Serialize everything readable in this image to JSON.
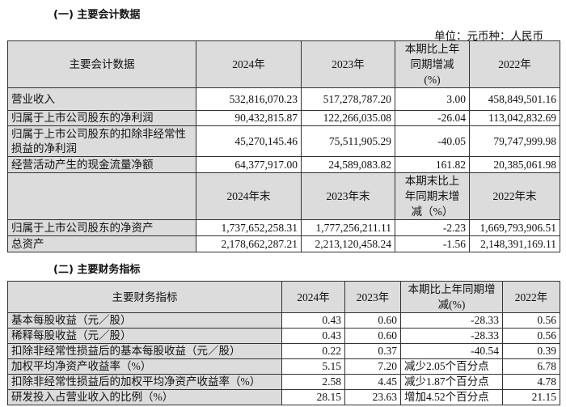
{
  "section1": {
    "title": "(一) 主要会计数据",
    "unit": "单位：元币种：人民币",
    "header1": [
      "主要会计数据",
      "2024年",
      "2023年",
      "本期比上年同期增减(%)",
      "2022年"
    ],
    "rows1": [
      {
        "label": "营业收入",
        "v2024": "532,816,070.23",
        "v2023": "517,278,787.20",
        "change": "3.00",
        "v2022": "458,849,501.16"
      },
      {
        "label": "归属于上市公司股东的净利润",
        "v2024": "90,432,815.87",
        "v2023": "122,266,035.08",
        "change": "-26.04",
        "v2022": "113,042,832.69"
      },
      {
        "label": "归属于上市公司股东的扣除非经常性损益的净利润",
        "v2024": "45,270,145.46",
        "v2023": "75,511,905.29",
        "change": "-40.05",
        "v2022": "79,747,999.98"
      },
      {
        "label": "经营活动产生的现金流量净额",
        "v2024": "64,377,917.00",
        "v2023": "24,589,083.82",
        "change": "161.82",
        "v2022": "20,385,061.98"
      }
    ],
    "header2": [
      "",
      "2024年末",
      "2023年末",
      "本期末比上年同期末增减（%）",
      "2022年末"
    ],
    "rows2": [
      {
        "label": "归属于上市公司股东的净资产",
        "v2024": "1,737,652,258.31",
        "v2023": "1,777,256,211.11",
        "change": "-2.23",
        "v2022": "1,669,793,906.51"
      },
      {
        "label": "总资产",
        "v2024": "2,178,662,287.21",
        "v2023": "2,213,120,458.24",
        "change": "-1.56",
        "v2022": "2,148,391,169.11"
      }
    ]
  },
  "section2": {
    "title": "(二) 主要财务指标",
    "header": [
      "主要财务指标",
      "2024年",
      "2023年",
      "本期比上年同期增减(%)",
      "2022年"
    ],
    "rows": [
      {
        "label": "基本每股收益（元／股）",
        "v2024": "0.43",
        "v2023": "0.60",
        "change": "-28.33",
        "v2022": "0.56"
      },
      {
        "label": "稀释每股收益（元／股）",
        "v2024": "0.43",
        "v2023": "0.60",
        "change": "-28.33",
        "v2022": "0.56"
      },
      {
        "label": "扣除非经常性损益后的基本每股收益（元／股）",
        "v2024": "0.22",
        "v2023": "0.37",
        "change": "-40.54",
        "v2022": "0.39"
      },
      {
        "label": "加权平均净资产收益率（%）",
        "v2024": "5.15",
        "v2023": "7.20",
        "change": "减少2.05个百分点",
        "v2022": "6.78"
      },
      {
        "label": "扣除非经常性损益后的加权平均净资产收益率（%）",
        "v2024": "2.58",
        "v2023": "4.45",
        "change": "减少1.87个百分点",
        "v2022": "4.78"
      },
      {
        "label": "研发投入占营业收入的比例（%）",
        "v2024": "28.15",
        "v2023": "23.63",
        "change": "增加4.52个百分点",
        "v2022": "21.15"
      }
    ]
  }
}
